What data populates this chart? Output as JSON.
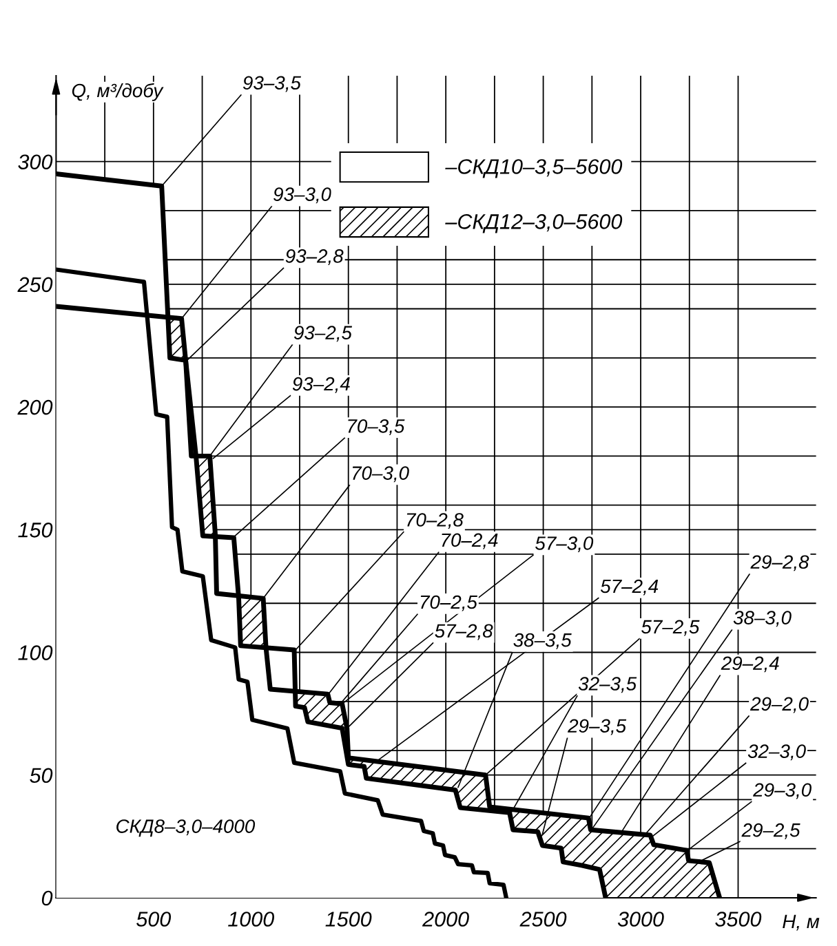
{
  "chart_data": {
    "type": "area",
    "xlabel": "H, м",
    "ylabel": "Q, м³/добу",
    "xlim": [
      0,
      3900
    ],
    "ylim": [
      0,
      335
    ],
    "xticks": [
      {
        "value": 250,
        "label": null
      },
      500,
      {
        "value": 750,
        "label": null
      },
      1000,
      {
        "value": 1250,
        "label": null
      },
      1500,
      {
        "value": 1750,
        "label": null
      },
      2000,
      {
        "value": 2250,
        "label": null
      },
      2500,
      {
        "value": 2750,
        "label": null
      },
      3000,
      {
        "value": 3250,
        "label": null
      },
      3500
    ],
    "yticks": [
      0,
      {
        "value": 20,
        "label": null
      },
      {
        "value": 40,
        "label": null
      },
      50,
      {
        "value": 60,
        "label": null
      },
      {
        "value": 80,
        "label": null
      },
      100,
      {
        "value": 120,
        "label": null
      },
      {
        "value": 140,
        "label": null
      },
      150,
      {
        "value": 160,
        "label": null
      },
      {
        "value": 180,
        "label": null
      },
      200,
      {
        "value": 220,
        "label": null
      },
      {
        "value": 240,
        "label": null
      },
      250,
      {
        "value": 260,
        "label": null
      },
      {
        "value": 280,
        "label": null
      },
      300
    ],
    "grid": true,
    "legend": "top right",
    "series": [
      {
        "name": "–СКД12–3,0–5600",
        "color": "#000000",
        "x": [
          0,
          644,
          665,
          694,
          789,
          817,
          824,
          1063,
          1077,
          1099,
          1394,
          1405,
          1468,
          1493,
          1500,
          2204,
          2225,
          2732,
          2743,
          3049,
          3067,
          3236,
          3246,
          3352,
          3405
        ],
        "values": [
          241,
          236,
          219,
          180,
          180,
          148,
          124,
          122,
          102,
          85,
          83,
          79.5,
          79,
          69,
          57,
          50,
          37,
          32.5,
          27.7,
          25.5,
          21.6,
          19.3,
          15.1,
          14.3,
          0
        ]
      },
      {
        "name": "–СКД10–3,5–5600",
        "color": "#000000",
        "x": [
          0,
          542,
          584,
          665,
          718,
          753,
          912,
          937,
          947,
          1222,
          1229,
          1275,
          1292,
          1468,
          1500,
          1581,
          1592,
          2049,
          2074,
          2327,
          2345,
          2472,
          2496,
          2592,
          2602,
          2697,
          2789,
          2820
        ],
        "values": [
          295,
          290,
          220,
          219,
          180,
          147.5,
          146.7,
          122.3,
          102.7,
          101,
          78.1,
          77.5,
          71.7,
          69.1,
          54.3,
          53.5,
          48.7,
          43.9,
          36.7,
          34.7,
          27.7,
          26.9,
          21.3,
          20.2,
          14.6,
          13.2,
          11.5,
          0
        ]
      },
      {
        "type": "line",
        "color": "#000000",
        "x": [
          0,
          451,
          514,
          570,
          595,
          623,
          648,
          753,
          796,
          919,
          937,
          982,
          1007,
          1187,
          1222,
          1458,
          1482,
          1651,
          1676,
          1873,
          1887,
          1933,
          1944,
          1986,
          1996,
          2046,
          2063,
          2134,
          2144,
          2215,
          2225,
          2296,
          2310
        ],
        "values": [
          256,
          251,
          197,
          196,
          151,
          150,
          133,
          131,
          105,
          102,
          89,
          88,
          72.5,
          69,
          55,
          51.5,
          42.5,
          39.7,
          33.9,
          31.3,
          27.2,
          26.3,
          22.1,
          21.3,
          17.4,
          16.5,
          13.7,
          13.2,
          10.4,
          10.1,
          5.9,
          5.3,
          0
        ]
      }
    ],
    "annotations": [
      {
        "text": "93–3,5",
        "x": 542,
        "y": 290
      },
      {
        "text": "93–3,0",
        "x": 644,
        "y": 236
      },
      {
        "text": "93–2,8",
        "x": 672,
        "y": 219
      },
      {
        "text": "93–2,5",
        "x": 789,
        "y": 180
      },
      {
        "text": "93–2,4",
        "x": 806,
        "y": 179
      },
      {
        "text": "70–3,5",
        "x": 912,
        "y": 147
      },
      {
        "text": "70–3,0",
        "x": 1063,
        "y": 122
      },
      {
        "text": "70–2,8",
        "x": 1229,
        "y": 101
      },
      {
        "text": "70–2,4",
        "x": 1398,
        "y": 83
      },
      {
        "text": "57–3,0",
        "x": 1468,
        "y": 79
      },
      {
        "text": "70–2,5",
        "x": 1447,
        "y": 78
      },
      {
        "text": "57–2,8",
        "x": 1493,
        "y": 69
      },
      {
        "text": "57–2,4",
        "x": 1651,
        "y": 56
      },
      {
        "text": "38–3,5",
        "x": 2063,
        "y": 45
      },
      {
        "text": "57–2,5",
        "x": 2204,
        "y": 50
      },
      {
        "text": "32–3,5",
        "x": 2338,
        "y": 35
      },
      {
        "text": "29–3,5",
        "x": 2496,
        "y": 26
      },
      {
        "text": "29–2,8",
        "x": 2732,
        "y": 32
      },
      {
        "text": "38–3,0",
        "x": 2750,
        "y": 28
      },
      {
        "text": "29–2,4",
        "x": 2900,
        "y": 26.6
      },
      {
        "text": "29–2,0",
        "x": 3025,
        "y": 26
      },
      {
        "text": "32–3,0",
        "x": 3060,
        "y": 25
      },
      {
        "text": "29–3,0",
        "x": 3236,
        "y": 19
      },
      {
        "text": "29–2,5",
        "x": 3300,
        "y": 14.7
      },
      "СКД8–3,0–4000"
    ]
  }
}
